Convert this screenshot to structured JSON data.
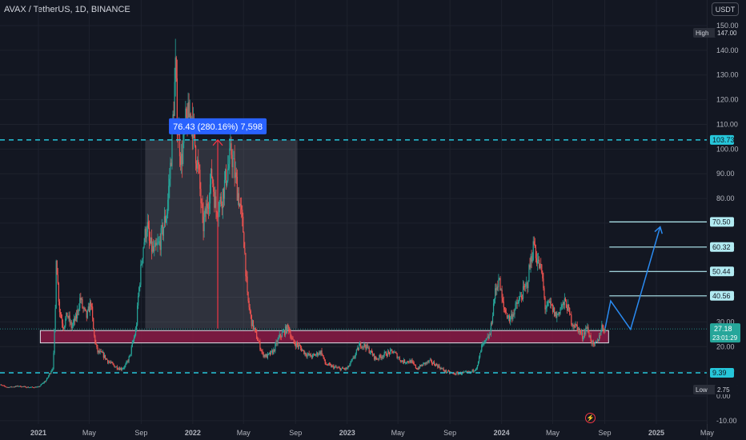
{
  "header": {
    "symbol_title": "AVAX / TetherUS, 1D, BINANCE",
    "currency_label": "USDT"
  },
  "colors": {
    "background": "#131722",
    "up": "#26a69a",
    "down": "#ef5350",
    "dashed_levels": "#26c6da",
    "support_zone": "#8b1a45",
    "measure": "#2962ff",
    "projection": "#2a8bf2",
    "target_lines": "#b2ebf2"
  },
  "icons": {
    "alerts": "lightning-bolt-icon"
  },
  "chart_data": {
    "type": "candlestick",
    "symbol": "AVAX / TetherUS",
    "timeframe": "1D",
    "exchange": "BINANCE",
    "y_axis": {
      "min": -10,
      "max": 150,
      "ticks": [
        "-10.00",
        "0.00",
        "10.00",
        "20.00",
        "30.00",
        "40.00",
        "50.00",
        "60.00",
        "70.00",
        "80.00",
        "90.00",
        "100.00",
        "110.00",
        "120.00",
        "130.00",
        "140.00",
        "150.00"
      ]
    },
    "x_axis": {
      "ticks": [
        {
          "label": "2021",
          "date": "2021-01-01"
        },
        {
          "label": "May",
          "date": "2021-05-01"
        },
        {
          "label": "Sep",
          "date": "2021-09-01"
        },
        {
          "label": "2022",
          "date": "2022-01-01"
        },
        {
          "label": "May",
          "date": "2022-05-01"
        },
        {
          "label": "Sep",
          "date": "2022-09-01"
        },
        {
          "label": "2023",
          "date": "2023-01-01"
        },
        {
          "label": "May",
          "date": "2023-05-01"
        },
        {
          "label": "Sep",
          "date": "2023-09-01"
        },
        {
          "label": "2024",
          "date": "2024-01-01"
        },
        {
          "label": "May",
          "date": "2024-05-01"
        },
        {
          "label": "Sep",
          "date": "2024-09-01"
        },
        {
          "label": "2025",
          "date": "2025-01-01"
        },
        {
          "label": "May",
          "date": "2025-05-01"
        }
      ]
    },
    "price_series": {
      "name": "AVAX / TetherUS close (approx.)",
      "points": [
        [
          "2020-09-25",
          4.9
        ],
        [
          "2020-10-20",
          3.5
        ],
        [
          "2020-11-15",
          4.0
        ],
        [
          "2020-12-10",
          3.5
        ],
        [
          "2021-01-01",
          3.6
        ],
        [
          "2021-01-20",
          6.5
        ],
        [
          "2021-02-05",
          12
        ],
        [
          "2021-02-10",
          35
        ],
        [
          "2021-02-12",
          58
        ],
        [
          "2021-02-16",
          45
        ],
        [
          "2021-02-20",
          35
        ],
        [
          "2021-03-01",
          28
        ],
        [
          "2021-03-10",
          33
        ],
        [
          "2021-03-20",
          28
        ],
        [
          "2021-04-01",
          32
        ],
        [
          "2021-04-10",
          40
        ],
        [
          "2021-04-15",
          36
        ],
        [
          "2021-04-25",
          32
        ],
        [
          "2021-05-05",
          38
        ],
        [
          "2021-05-12",
          25
        ],
        [
          "2021-05-20",
          18
        ],
        [
          "2021-06-01",
          17
        ],
        [
          "2021-06-15",
          14
        ],
        [
          "2021-07-01",
          12
        ],
        [
          "2021-07-15",
          11
        ],
        [
          "2021-07-25",
          12
        ],
        [
          "2021-08-05",
          16
        ],
        [
          "2021-08-10",
          20
        ],
        [
          "2021-08-20",
          27
        ],
        [
          "2021-08-25",
          40
        ],
        [
          "2021-09-05",
          60
        ],
        [
          "2021-09-15",
          70
        ],
        [
          "2021-09-20",
          62
        ],
        [
          "2021-10-01",
          58
        ],
        [
          "2021-10-15",
          62
        ],
        [
          "2021-11-01",
          75
        ],
        [
          "2021-11-10",
          95
        ],
        [
          "2021-11-21",
          132
        ],
        [
          "2021-11-25",
          112
        ],
        [
          "2021-12-05",
          95
        ],
        [
          "2021-12-15",
          110
        ],
        [
          "2021-12-28",
          115
        ],
        [
          "2022-01-05",
          103
        ],
        [
          "2022-01-15",
          90
        ],
        [
          "2022-01-25",
          68
        ],
        [
          "2022-02-05",
          78
        ],
        [
          "2022-02-15",
          90
        ],
        [
          "2022-02-25",
          75
        ],
        [
          "2022-03-10",
          80
        ],
        [
          "2022-03-25",
          92
        ],
        [
          "2022-04-02",
          99
        ],
        [
          "2022-04-10",
          90
        ],
        [
          "2022-04-20",
          80
        ],
        [
          "2022-05-01",
          66
        ],
        [
          "2022-05-10",
          40
        ],
        [
          "2022-05-20",
          30
        ],
        [
          "2022-06-01",
          24
        ],
        [
          "2022-06-15",
          17
        ],
        [
          "2022-06-25",
          16
        ],
        [
          "2022-07-10",
          18
        ],
        [
          "2022-07-25",
          24
        ],
        [
          "2022-08-05",
          26
        ],
        [
          "2022-08-15",
          28
        ],
        [
          "2022-08-25",
          22
        ],
        [
          "2022-09-10",
          20
        ],
        [
          "2022-09-25",
          17
        ],
        [
          "2022-10-10",
          16
        ],
        [
          "2022-11-01",
          18
        ],
        [
          "2022-11-10",
          13
        ],
        [
          "2022-11-25",
          12
        ],
        [
          "2022-12-15",
          11
        ],
        [
          "2023-01-01",
          11
        ],
        [
          "2023-01-15",
          15
        ],
        [
          "2023-02-01",
          21
        ],
        [
          "2023-02-15",
          20
        ],
        [
          "2023-03-10",
          15
        ],
        [
          "2023-04-01",
          17
        ],
        [
          "2023-04-20",
          18
        ],
        [
          "2023-05-10",
          14
        ],
        [
          "2023-06-01",
          14
        ],
        [
          "2023-06-15",
          11
        ],
        [
          "2023-07-01",
          13
        ],
        [
          "2023-07-15",
          14
        ],
        [
          "2023-08-01",
          12.5
        ],
        [
          "2023-08-20",
          10
        ],
        [
          "2023-09-10",
          9
        ],
        [
          "2023-10-01",
          9.3
        ],
        [
          "2023-10-20",
          9.5
        ],
        [
          "2023-11-05",
          12
        ],
        [
          "2023-11-15",
          20
        ],
        [
          "2023-11-25",
          22
        ],
        [
          "2023-12-05",
          25
        ],
        [
          "2023-12-15",
          40
        ],
        [
          "2023-12-25",
          48
        ],
        [
          "2024-01-05",
          36
        ],
        [
          "2024-01-20",
          31
        ],
        [
          "2024-02-01",
          35
        ],
        [
          "2024-02-15",
          40
        ],
        [
          "2024-03-01",
          45
        ],
        [
          "2024-03-10",
          55
        ],
        [
          "2024-03-18",
          62
        ],
        [
          "2024-03-25",
          55
        ],
        [
          "2024-04-05",
          50
        ],
        [
          "2024-04-13",
          36
        ],
        [
          "2024-04-25",
          37
        ],
        [
          "2024-05-10",
          32
        ],
        [
          "2024-05-20",
          36
        ],
        [
          "2024-06-01",
          38
        ],
        [
          "2024-06-15",
          30
        ],
        [
          "2024-07-01",
          27
        ],
        [
          "2024-07-10",
          24
        ],
        [
          "2024-07-20",
          28
        ],
        [
          "2024-08-05",
          20
        ],
        [
          "2024-08-15",
          22
        ],
        [
          "2024-08-25",
          28
        ],
        [
          "2024-09-02",
          27.18
        ]
      ]
    },
    "price_labels": [
      {
        "name": "High",
        "value": 147.0,
        "text": "147.00"
      },
      {
        "name": "Low",
        "value": 2.75,
        "text": "2.75"
      }
    ],
    "last_price": {
      "value": 27.18,
      "text": "27.18",
      "countdown": "23:01:29"
    },
    "horizontal_levels": [
      {
        "value": 103.73,
        "text": "103.73",
        "style": "dashed"
      },
      {
        "value": 9.39,
        "text": "9.39",
        "style": "dashed"
      }
    ],
    "target_levels": [
      {
        "value": 70.5,
        "text": "70.50",
        "start": "2024-09-10"
      },
      {
        "value": 60.32,
        "text": "60.32",
        "start": "2024-09-10"
      },
      {
        "value": 50.44,
        "text": "50.44",
        "start": "2024-09-10"
      },
      {
        "value": 40.56,
        "text": "40.56",
        "start": "2024-09-10"
      }
    ],
    "support_zone": {
      "from_date": "2020-12-10",
      "to_date": "2024-09-10",
      "low": 21.5,
      "high": 26.5
    },
    "price_range_measure": {
      "from_date": "2021-11-10",
      "to_date": "2022-08-10",
      "low": 27.3,
      "high": 103.73,
      "arrow_date": "2022-03-01",
      "label": "76.43 (280.16%) 7,598"
    },
    "projection_path": [
      [
        "2024-09-02",
        27.5
      ],
      [
        "2024-09-15",
        38.5
      ],
      [
        "2024-11-01",
        27
      ],
      [
        "2025-01-10",
        68.5
      ]
    ]
  }
}
